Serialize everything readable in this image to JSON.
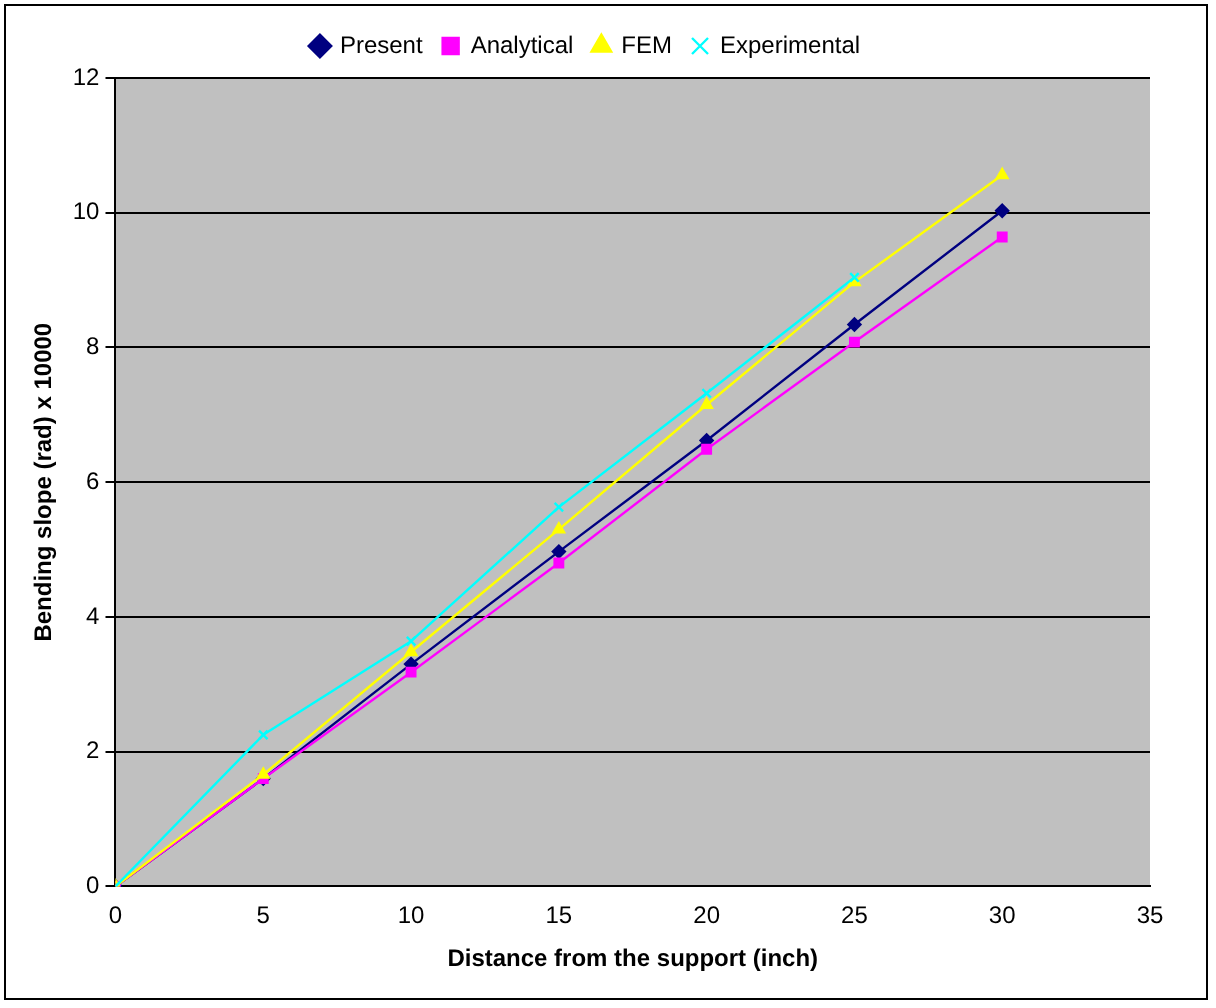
{
  "chart_data": {
    "type": "line",
    "xlabel": "Distance from the support (inch)",
    "ylabel": "Bending slope (rad) x 10000",
    "x": [
      0,
      5,
      10,
      15,
      20,
      25,
      30
    ],
    "series": [
      {
        "name": "Present",
        "color": "#000080",
        "marker": "diamond",
        "values": [
          0,
          1.6,
          3.3,
          4.97,
          6.62,
          8.34,
          10.03
        ]
      },
      {
        "name": "Analytical",
        "color": "#ff00ff",
        "marker": "square",
        "values": [
          0,
          1.6,
          3.18,
          4.8,
          6.49,
          8.08,
          9.64
        ]
      },
      {
        "name": "FEM",
        "color": "#ffff00",
        "marker": "triangle",
        "values": [
          0,
          1.66,
          3.48,
          5.3,
          7.15,
          8.97,
          10.56
        ]
      },
      {
        "name": "Experimental",
        "color": "#00ffff",
        "marker": "cross",
        "values": [
          0,
          2.25,
          3.64,
          5.63,
          7.32,
          9.04,
          null
        ]
      }
    ],
    "xlim": [
      0,
      35
    ],
    "xticks": [
      0,
      5,
      10,
      15,
      20,
      25,
      30,
      35
    ],
    "ylim": [
      0,
      12
    ],
    "yticks": [
      0,
      2,
      4,
      6,
      8,
      10,
      12
    ],
    "grid": "y",
    "legend": "top",
    "line_style": "solid"
  }
}
